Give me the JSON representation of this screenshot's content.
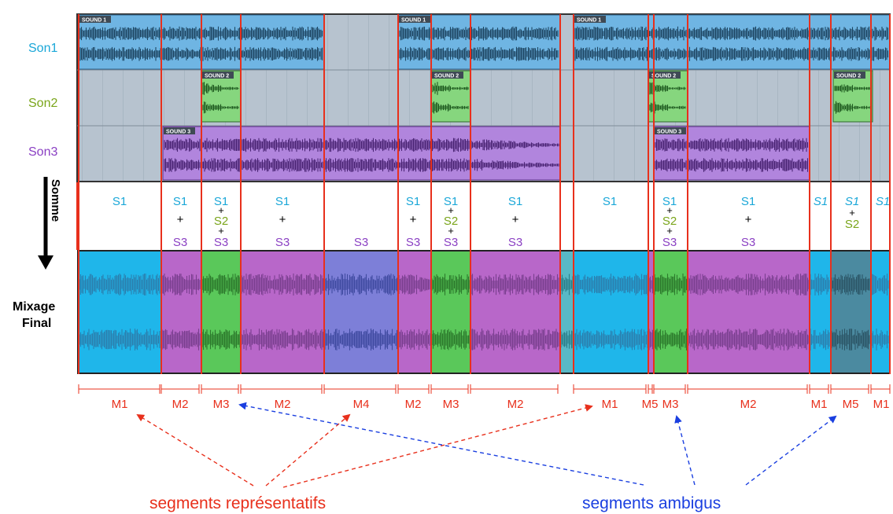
{
  "tracks": {
    "son1": {
      "label": "Son1",
      "color": "#1aa7d8"
    },
    "son2": {
      "label": "Son2",
      "color": "#7aa51a"
    },
    "son3": {
      "label": "Son3",
      "color": "#8a3fc3"
    }
  },
  "clips": {
    "sound1": "SOUND 1",
    "sound2": "SOUND 2",
    "sound3": "SOUND 3"
  },
  "side": {
    "somme": "Somme",
    "mixage_line1": "Mixage",
    "mixage_line2": "Final"
  },
  "sum_labels": {
    "s1": "S1",
    "s2": "S2",
    "s3": "S3",
    "plus": "+"
  },
  "segments": [
    "M1",
    "M2",
    "M3",
    "M2",
    "M4",
    "M2",
    "M3",
    "M2",
    "M1",
    "M5",
    "M3",
    "M2",
    "M1",
    "M5",
    "M1"
  ],
  "captions": {
    "representative": "segments représentatifs",
    "ambiguous": "segments ambigus"
  },
  "colors": {
    "s1_text": "#1aa7d8",
    "s2_text": "#7aa51a",
    "s3_text": "#8a3fc3",
    "segment_red": "#e8301c",
    "ambiguous_blue": "#1a3fe0",
    "mix_blue": "#1fb6ea",
    "mix_purple": "#b867c9",
    "mix_green": "#5ac85a",
    "mix_violet": "#7d7fd8",
    "mix_grey": "#4b8aa0"
  }
}
